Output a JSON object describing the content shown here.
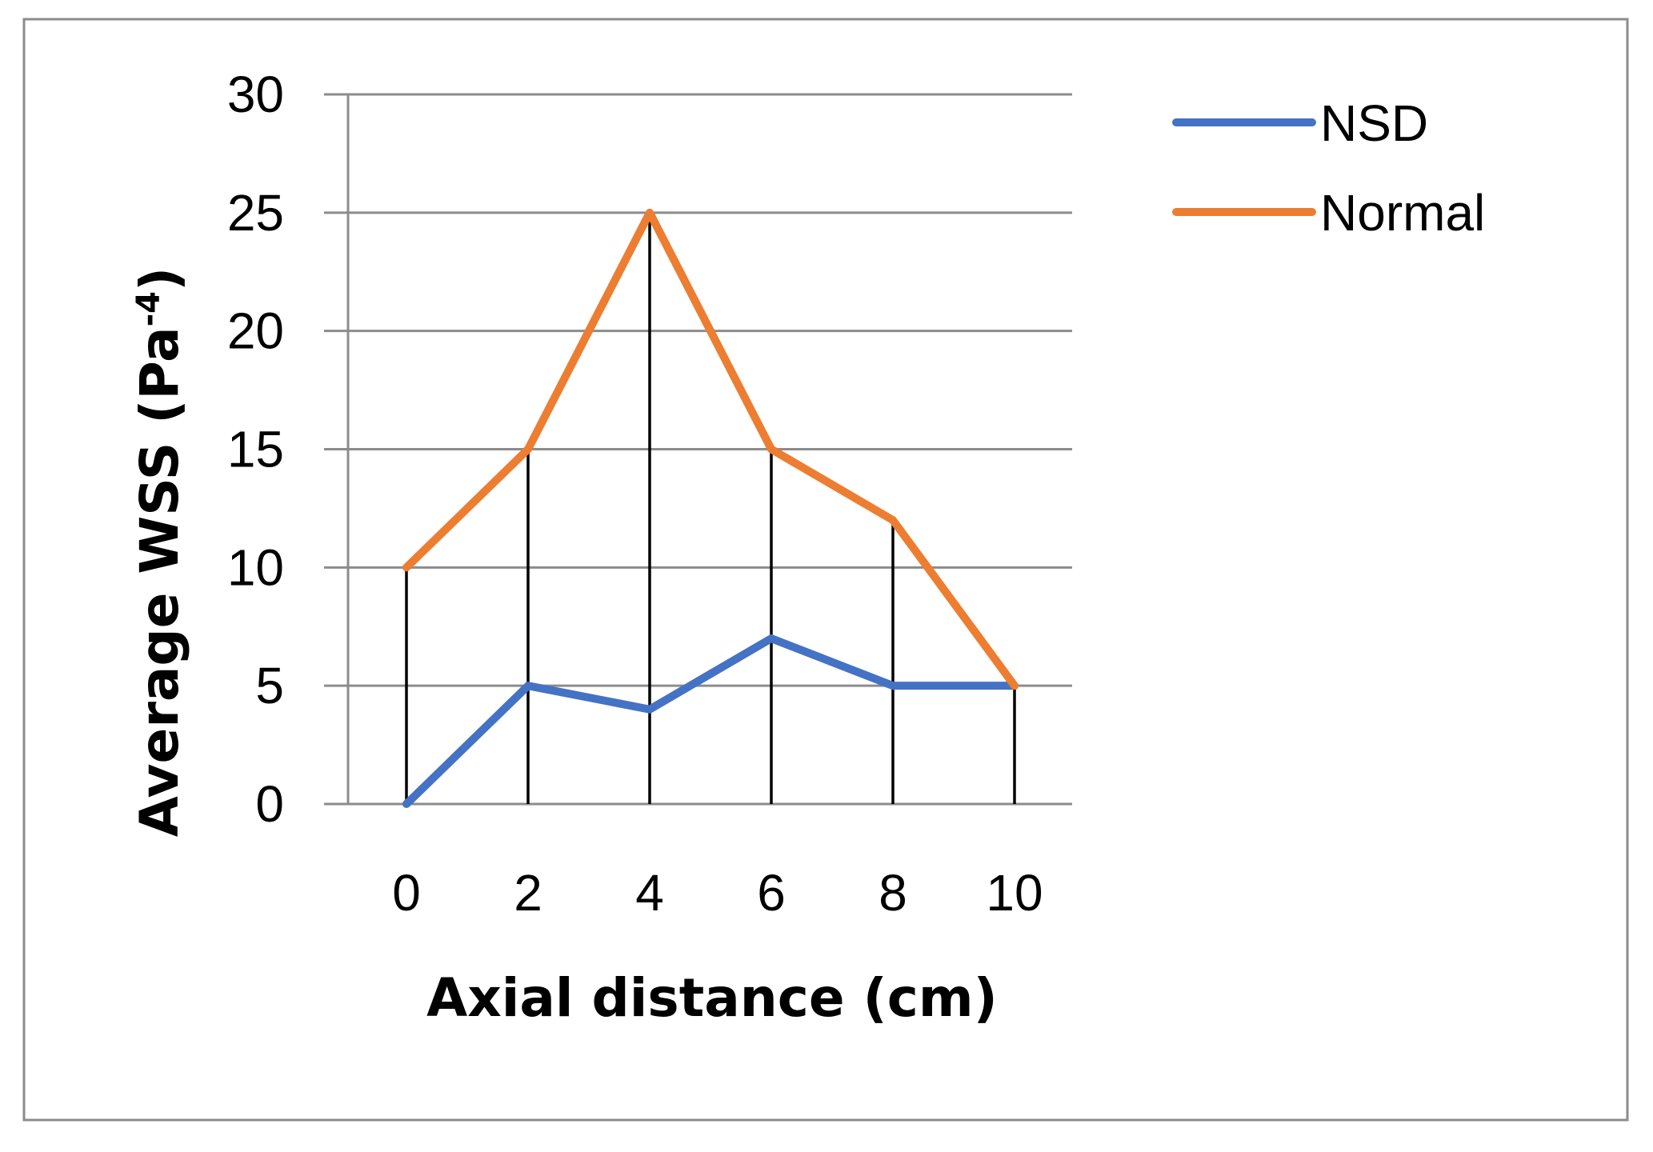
{
  "colors": {
    "nsd": "#4472C4",
    "normal": "#ED7D31",
    "gridline": "#8C8C8C",
    "drop_line": "#000000",
    "frame": "#8C8C8C"
  },
  "chart_data": {
    "type": "line",
    "title": "",
    "xlabel": "Axial distance (cm)",
    "ylabel_main": "Average WSS (Pa",
    "ylabel_sup": "-4",
    "ylabel_close": ")",
    "x": [
      0,
      2,
      4,
      6,
      8,
      10
    ],
    "x_tick_labels": [
      "0",
      "2",
      "4",
      "6",
      "8",
      "10"
    ],
    "y_ticks": [
      0,
      5,
      10,
      15,
      20,
      25,
      30
    ],
    "y_tick_labels": [
      "0",
      "5",
      "10",
      "15",
      "20",
      "25",
      "30"
    ],
    "ylim": [
      0,
      30
    ],
    "grid": "horizontal",
    "drop_lines": true,
    "legend_position": "top-right",
    "series": [
      {
        "name": "NSD",
        "values": [
          0,
          5,
          4,
          7,
          5,
          5
        ]
      },
      {
        "name": "Normal",
        "values": [
          10,
          15,
          25,
          15,
          12,
          5
        ]
      }
    ]
  }
}
